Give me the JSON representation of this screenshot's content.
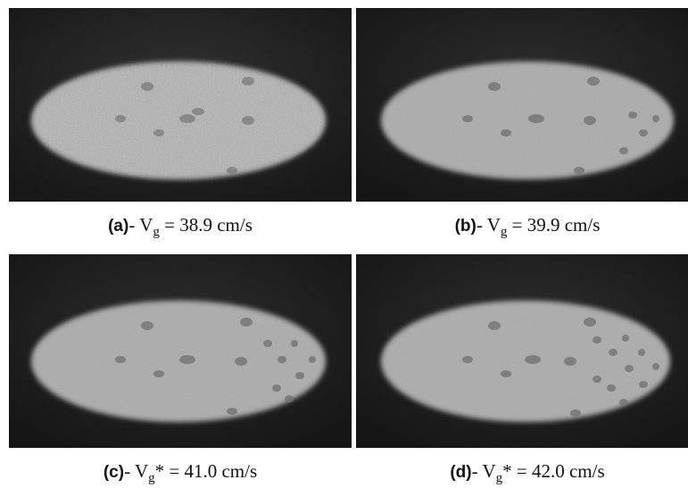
{
  "panels": [
    {
      "id": "a",
      "tag": "(a)",
      "dash": "- ",
      "var": "V",
      "sub": "g",
      "star": "",
      "eq": " = 38.9 cm/s"
    },
    {
      "id": "b",
      "tag": "(b)",
      "dash": "- ",
      "var": "V",
      "sub": "g",
      "star": "",
      "eq": " = 39.9 cm/s"
    },
    {
      "id": "c",
      "tag": "(c)",
      "dash": "- ",
      "var": "V",
      "sub": "g",
      "star": "*",
      "eq": " = 41.0 cm/s"
    },
    {
      "id": "d",
      "tag": "(d)",
      "dash": "- ",
      "var": "V",
      "sub": "g",
      "star": "*",
      "eq": " = 42.0 cm/s"
    }
  ],
  "colors": {
    "background": "#1c1c1c",
    "bed": "#a9a9a9",
    "bubble": "#6e6e6e"
  }
}
